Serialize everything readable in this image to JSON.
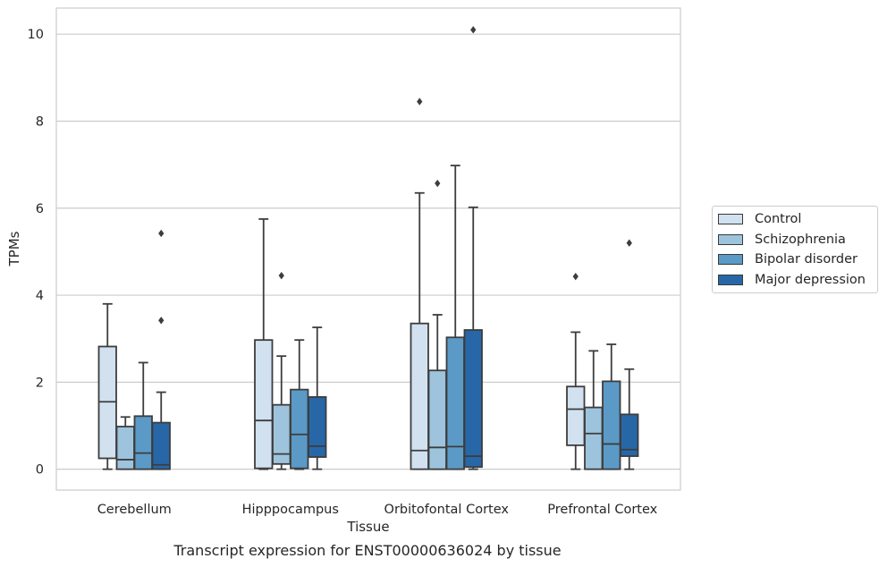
{
  "chart_data": {
    "type": "box",
    "xlabel": "Tissue",
    "ylabel": "TPMs",
    "ylim": [
      -0.48,
      10.6
    ],
    "yticks": [
      0,
      2,
      4,
      6,
      8,
      10
    ],
    "grid": "horizontal",
    "legend_placement": "right",
    "categories": [
      "Cerebellum",
      "Hipppocampus",
      "Orbitofontal Cortex",
      "Prefrontal Cortex"
    ],
    "series": [
      {
        "name": "Control",
        "color": "#d1e1f0",
        "boxes": [
          {
            "whislo": 0.0,
            "q1": 0.25,
            "med": 1.55,
            "q3": 2.82,
            "whishi": 3.8,
            "fliers": []
          },
          {
            "whislo": 0.0,
            "q1": 0.02,
            "med": 1.12,
            "q3": 2.97,
            "whishi": 5.75,
            "fliers": []
          },
          {
            "whislo": 0.0,
            "q1": 0.0,
            "med": 0.43,
            "q3": 3.35,
            "whishi": 6.35,
            "fliers": [
              8.45
            ]
          },
          {
            "whislo": 0.0,
            "q1": 0.55,
            "med": 1.38,
            "q3": 1.9,
            "whishi": 3.15,
            "fliers": [
              4.43
            ]
          }
        ]
      },
      {
        "name": "Schizophrenia",
        "color": "#9dc4dc",
        "boxes": [
          {
            "whislo": 0.0,
            "q1": 0.0,
            "med": 0.22,
            "q3": 0.98,
            "whishi": 1.2,
            "fliers": []
          },
          {
            "whislo": 0.0,
            "q1": 0.12,
            "med": 0.35,
            "q3": 1.48,
            "whishi": 2.6,
            "fliers": [
              4.45
            ]
          },
          {
            "whislo": 0.0,
            "q1": 0.0,
            "med": 0.5,
            "q3": 2.27,
            "whishi": 3.55,
            "fliers": [
              6.57
            ]
          },
          {
            "whislo": 0.0,
            "q1": 0.0,
            "med": 0.82,
            "q3": 1.42,
            "whishi": 2.72,
            "fliers": []
          }
        ]
      },
      {
        "name": "Bipolar disorder",
        "color": "#5b9ac6",
        "boxes": [
          {
            "whislo": 0.0,
            "q1": 0.0,
            "med": 0.37,
            "q3": 1.22,
            "whishi": 2.45,
            "fliers": []
          },
          {
            "whislo": 0.0,
            "q1": 0.02,
            "med": 0.8,
            "q3": 1.83,
            "whishi": 2.97,
            "fliers": []
          },
          {
            "whislo": 0.0,
            "q1": 0.0,
            "med": 0.52,
            "q3": 3.03,
            "whishi": 6.98,
            "fliers": []
          },
          {
            "whislo": 0.0,
            "q1": 0.0,
            "med": 0.58,
            "q3": 2.02,
            "whishi": 2.87,
            "fliers": []
          }
        ]
      },
      {
        "name": "Major depression",
        "color": "#2767a8",
        "boxes": [
          {
            "whislo": 0.0,
            "q1": 0.0,
            "med": 0.1,
            "q3": 1.07,
            "whishi": 1.77,
            "fliers": [
              3.42,
              5.42
            ]
          },
          {
            "whislo": 0.0,
            "q1": 0.28,
            "med": 0.53,
            "q3": 1.66,
            "whishi": 3.26,
            "fliers": []
          },
          {
            "whislo": 0.0,
            "q1": 0.05,
            "med": 0.3,
            "q3": 3.2,
            "whishi": 6.02,
            "fliers": [
              10.1
            ]
          },
          {
            "whislo": 0.0,
            "q1": 0.3,
            "med": 0.45,
            "q3": 1.26,
            "whishi": 2.3,
            "fliers": [
              5.2
            ]
          }
        ]
      }
    ]
  },
  "caption": "Transcript expression for ENST00000636024 by tissue"
}
